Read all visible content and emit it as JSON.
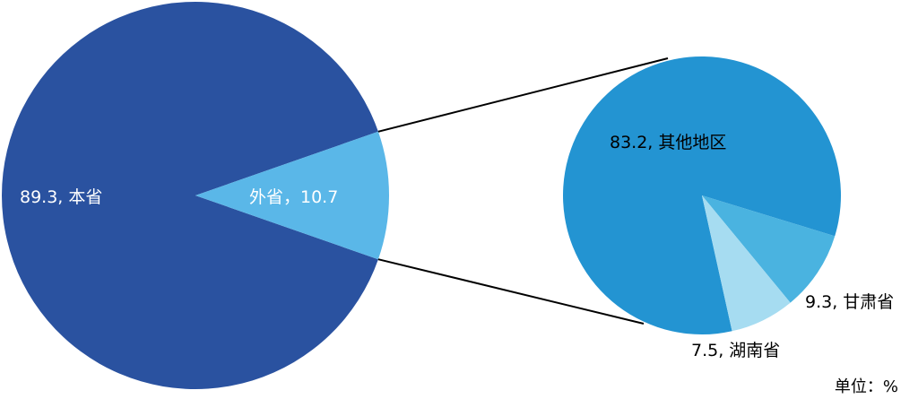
{
  "chart_data": [
    {
      "type": "pie",
      "slices": [
        {
          "label": "本省",
          "value": 89.3,
          "color": "#2a52a0",
          "text": "89.3, 本省"
        },
        {
          "label": "外省",
          "value": 10.7,
          "color": "#5ab7e8",
          "text": "外省，10.7"
        }
      ]
    },
    {
      "type": "pie",
      "slices": [
        {
          "label": "其他地区",
          "value": 83.2,
          "color": "#2394d2",
          "text": "83.2, 其他地区"
        },
        {
          "label": "甘肃省",
          "value": 9.3,
          "color": "#4ab3e0",
          "text": "9.3, 甘肃省"
        },
        {
          "label": "湖南省",
          "value": 7.5,
          "color": "#a6dcf1",
          "text": "7.5, 湖南省"
        }
      ]
    }
  ],
  "unit_label": "单位：%"
}
